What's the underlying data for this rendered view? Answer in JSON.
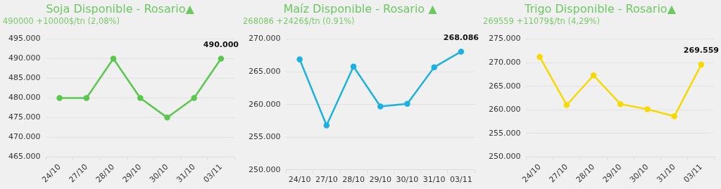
{
  "chart_data": [
    {
      "type": "line",
      "title": "Soja Disponible - Rosario▲",
      "subtitle": "490000 +10000$/tn (2,08%)",
      "categories": [
        "24/10",
        "27/10",
        "28/10",
        "29/10",
        "30/10",
        "31/10",
        "03/11"
      ],
      "series": [
        {
          "color": "#5ac84e",
          "values": [
            480000,
            480000,
            490000,
            480000,
            475000,
            480000,
            490000
          ],
          "value_labels": [
            null,
            null,
            null,
            null,
            null,
            null,
            "490.000"
          ]
        }
      ],
      "ylim": [
        465000,
        495000
      ],
      "yticks": [
        {
          "value": 465000,
          "label": "465.000"
        },
        {
          "value": 470000,
          "label": "470.000"
        },
        {
          "value": 475000,
          "label": "475.000"
        },
        {
          "value": 480000,
          "label": "480.000"
        },
        {
          "value": 485000,
          "label": "485.000"
        },
        {
          "value": 490000,
          "label": "490.000"
        },
        {
          "value": 495000,
          "label": "495.000"
        }
      ],
      "grid": "y",
      "legend": false,
      "marker": "circle"
    },
    {
      "type": "line",
      "title": "Maíz Disponible - Rosario ▲",
      "subtitle": "268086 +2426$/tn (0.91%)",
      "categories": [
        "24/10",
        "27/10",
        "28/10",
        "29/10",
        "30/10",
        "31/10",
        "03/11"
      ],
      "series": [
        {
          "color": "#1ab2e3",
          "values": [
            266900,
            256800,
            265800,
            259700,
            260100,
            265700,
            268086
          ],
          "value_labels": [
            null,
            null,
            null,
            null,
            null,
            null,
            "268.086"
          ]
        }
      ],
      "ylim": [
        250000,
        270000
      ],
      "yticks": [
        {
          "value": 250000,
          "label": "250.000"
        },
        {
          "value": 255000,
          "label": "255.000"
        },
        {
          "value": 260000,
          "label": "260.000"
        },
        {
          "value": 265000,
          "label": "265.000"
        },
        {
          "value": 270000,
          "label": "270.000"
        }
      ],
      "grid": "y",
      "legend": false,
      "marker": "circle"
    },
    {
      "type": "line",
      "title": "Trigo Disponible - Rosario▲",
      "subtitle": "269559 +11079$/tn (4,29%)",
      "categories": [
        "24/10",
        "27/10",
        "28/10",
        "29/10",
        "30/10",
        "31/10",
        "03/11"
      ],
      "series": [
        {
          "color": "#f7d900",
          "values": [
            271200,
            261000,
            267300,
            261200,
            260100,
            258600,
            269559
          ],
          "value_labels": [
            null,
            null,
            null,
            null,
            null,
            null,
            "269.559"
          ]
        }
      ],
      "ylim": [
        250000,
        275000
      ],
      "yticks": [
        {
          "value": 250000,
          "label": "250.000"
        },
        {
          "value": 255000,
          "label": "255.000"
        },
        {
          "value": 260000,
          "label": "260.000"
        },
        {
          "value": 265000,
          "label": "265.000"
        },
        {
          "value": 270000,
          "label": "270.000"
        },
        {
          "value": 275000,
          "label": "275.000"
        }
      ],
      "grid": "y",
      "legend": false,
      "marker": "circle"
    }
  ]
}
